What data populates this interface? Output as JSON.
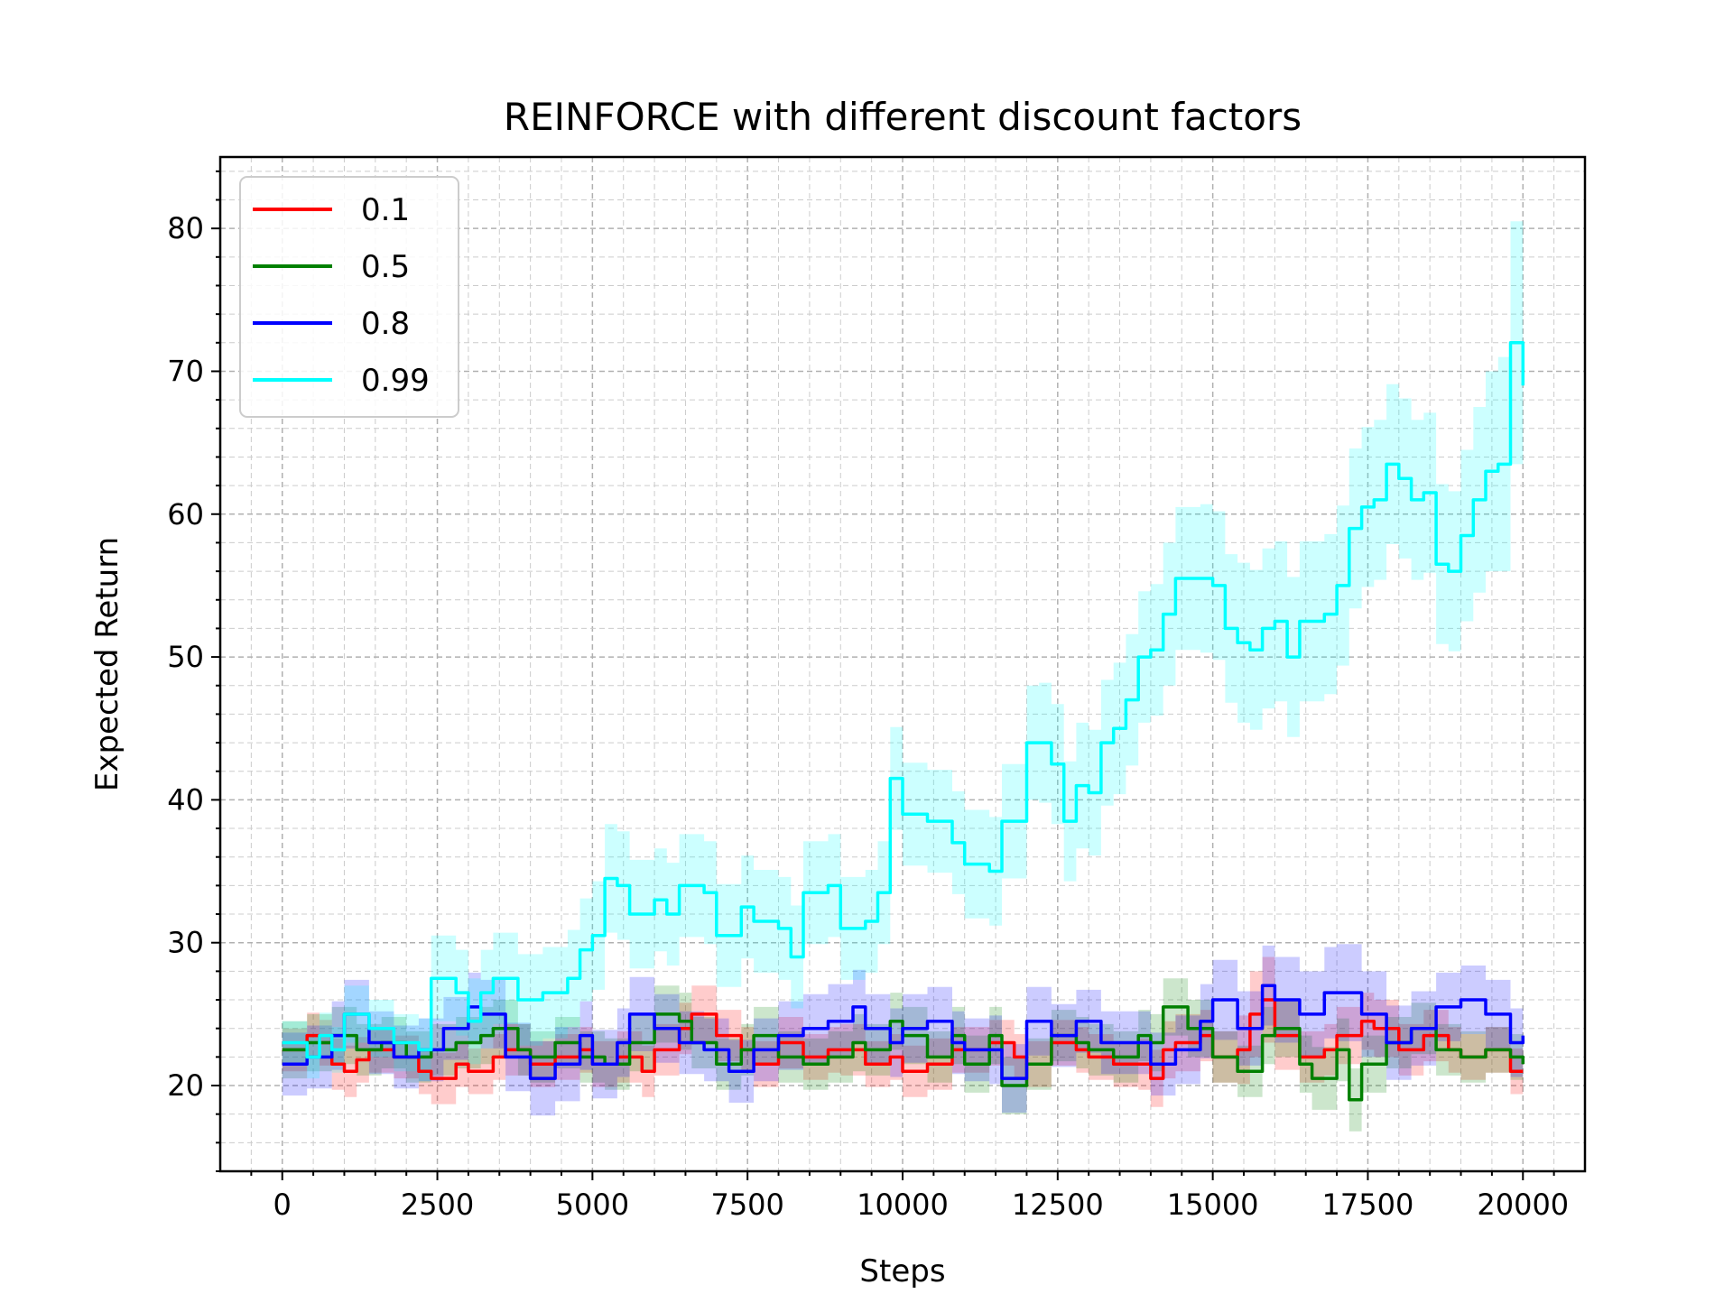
{
  "chart_data": {
    "type": "line",
    "title": "REINFORCE with different discount factors",
    "xlabel": "Steps",
    "ylabel": "Expected Return",
    "xlim": [
      -1000,
      21000
    ],
    "ylim": [
      14,
      85
    ],
    "xticks": [
      0,
      2500,
      5000,
      7500,
      10000,
      12500,
      15000,
      17500,
      20000
    ],
    "xtick_labels": [
      "0",
      "2500",
      "5000",
      "7500",
      "10000",
      "12500",
      "15000",
      "17500",
      "20000"
    ],
    "yticks": [
      20,
      30,
      40,
      50,
      60,
      70,
      80
    ],
    "ytick_labels": [
      "20",
      "30",
      "40",
      "50",
      "60",
      "70",
      "80"
    ],
    "grid": "major and minor, dashed",
    "legend_position": "top-left",
    "bands": "shaded ±std band around each series",
    "series": [
      {
        "name": "0.1",
        "color": "#ff0000",
        "x": [
          0,
          400,
          600,
          800,
          1000,
          1200,
          1400,
          1800,
          2200,
          2400,
          2800,
          3000,
          3400,
          3600,
          4000,
          4400,
          4800,
          5000,
          5400,
          5800,
          6000,
          6400,
          6600,
          7000,
          7400,
          7600,
          8000,
          8400,
          8800,
          9000,
          9400,
          9800,
          10000,
          10400,
          10800,
          11000,
          11400,
          11800,
          12000,
          12400,
          12800,
          13000,
          13400,
          13800,
          14000,
          14200,
          14400,
          14800,
          15000,
          15400,
          15600,
          15800,
          16000,
          16400,
          16800,
          17000,
          17400,
          17600,
          18000,
          18400,
          18800,
          19000,
          19400,
          19800,
          20000
        ],
        "y": [
          22.5,
          23.5,
          23.0,
          21.5,
          21.0,
          21.8,
          22.5,
          22.0,
          21.0,
          20.5,
          21.5,
          21.0,
          22.0,
          22.5,
          21.5,
          22.0,
          22.5,
          21.5,
          22.0,
          21.0,
          22.5,
          24.0,
          25.0,
          23.5,
          22.5,
          21.5,
          23.0,
          22.0,
          22.5,
          22.5,
          21.5,
          22.0,
          21.0,
          21.5,
          22.5,
          22.5,
          23.0,
          22.0,
          21.5,
          23.0,
          22.5,
          22.0,
          21.5,
          21.5,
          20.5,
          22.5,
          23.0,
          23.5,
          22.0,
          22.5,
          25.0,
          26.0,
          23.5,
          22.0,
          22.5,
          23.5,
          24.5,
          24.0,
          22.5,
          23.5,
          22.5,
          22.0,
          22.5,
          21.0,
          21.0
        ],
        "std": [
          1.5,
          1.6,
          1.6,
          1.8,
          1.8,
          1.6,
          1.6,
          1.5,
          1.6,
          1.8,
          1.6,
          1.6,
          1.6,
          1.8,
          1.6,
          1.6,
          1.6,
          1.6,
          1.8,
          1.8,
          1.8,
          1.8,
          2.0,
          1.8,
          1.6,
          1.6,
          1.8,
          1.6,
          1.6,
          1.8,
          1.6,
          1.6,
          1.8,
          1.8,
          1.6,
          1.6,
          1.6,
          1.6,
          1.6,
          1.6,
          1.6,
          1.6,
          1.6,
          1.8,
          2.0,
          2.0,
          2.0,
          1.8,
          1.8,
          2.4,
          3.0,
          3.0,
          2.4,
          1.8,
          1.8,
          2.0,
          2.0,
          2.0,
          1.8,
          1.8,
          1.6,
          1.6,
          1.6,
          1.6,
          1.6
        ]
      },
      {
        "name": "0.5",
        "color": "#008000",
        "x": [
          0,
          400,
          800,
          1200,
          1600,
          2000,
          2400,
          2800,
          3200,
          3400,
          3800,
          4000,
          4400,
          4800,
          5200,
          5600,
          6000,
          6400,
          6600,
          7000,
          7400,
          7600,
          8000,
          8400,
          8800,
          9200,
          9400,
          9800,
          10000,
          10400,
          10800,
          11000,
          11400,
          11600,
          12000,
          12400,
          12800,
          13000,
          13400,
          13800,
          14000,
          14200,
          14600,
          15000,
          15400,
          15800,
          16000,
          16400,
          16600,
          17000,
          17200,
          17400,
          17800,
          18200,
          18600,
          19000,
          19400,
          19800,
          20000
        ],
        "y": [
          22.5,
          23.0,
          23.5,
          22.5,
          23.0,
          22.0,
          22.5,
          23.0,
          23.5,
          24.0,
          22.5,
          22.0,
          23.0,
          22.0,
          21.5,
          23.0,
          25.0,
          24.5,
          23.0,
          21.5,
          22.5,
          23.5,
          22.0,
          21.5,
          22.0,
          23.0,
          22.5,
          24.5,
          23.5,
          22.0,
          23.5,
          21.5,
          23.5,
          20.0,
          21.5,
          23.5,
          23.0,
          22.5,
          22.0,
          23.5,
          23.0,
          25.5,
          24.0,
          22.0,
          21.0,
          23.5,
          24.0,
          21.5,
          20.5,
          22.5,
          19.0,
          21.5,
          23.0,
          24.0,
          22.5,
          22.0,
          22.5,
          22.0,
          21.5
        ],
        "std": [
          2.0,
          2.0,
          2.0,
          1.8,
          1.8,
          1.8,
          1.8,
          1.8,
          2.0,
          2.0,
          1.8,
          1.8,
          1.8,
          1.8,
          1.8,
          2.0,
          2.0,
          2.0,
          1.8,
          1.8,
          1.8,
          2.0,
          1.8,
          1.8,
          1.8,
          2.0,
          1.8,
          2.0,
          2.0,
          1.8,
          2.0,
          2.0,
          2.0,
          2.0,
          1.8,
          1.8,
          1.8,
          1.8,
          1.8,
          1.8,
          2.0,
          2.0,
          2.0,
          1.8,
          1.8,
          2.0,
          2.0,
          2.0,
          2.2,
          2.2,
          2.2,
          2.0,
          1.8,
          1.8,
          1.8,
          1.8,
          1.6,
          1.6,
          1.6
        ]
      },
      {
        "name": "0.8",
        "color": "#0000ff",
        "x": [
          0,
          400,
          800,
          1000,
          1400,
          1800,
          2200,
          2600,
          3000,
          3200,
          3600,
          4000,
          4400,
          4800,
          5000,
          5400,
          5600,
          6000,
          6400,
          6800,
          7200,
          7600,
          8000,
          8400,
          8800,
          9200,
          9400,
          9800,
          10000,
          10400,
          10800,
          11000,
          11400,
          11600,
          12000,
          12400,
          12800,
          13200,
          13600,
          14000,
          14400,
          14800,
          15000,
          15400,
          15800,
          16000,
          16400,
          16800,
          17000,
          17400,
          17800,
          18200,
          18600,
          19000,
          19400,
          19800,
          20000
        ],
        "y": [
          21.5,
          22.0,
          23.5,
          25.0,
          23.0,
          22.0,
          22.5,
          24.0,
          25.5,
          25.0,
          22.0,
          20.5,
          21.5,
          23.5,
          21.5,
          23.0,
          25.0,
          24.0,
          23.0,
          22.5,
          21.0,
          22.5,
          23.5,
          24.0,
          24.5,
          25.5,
          24.0,
          23.0,
          24.0,
          24.5,
          23.0,
          22.5,
          22.5,
          20.5,
          24.5,
          23.5,
          24.5,
          23.0,
          23.0,
          21.5,
          22.5,
          24.5,
          26.0,
          24.0,
          27.0,
          26.0,
          25.0,
          26.5,
          26.5,
          25.0,
          23.0,
          24.0,
          25.5,
          26.0,
          25.0,
          23.0,
          23.5
        ],
        "std": [
          2.2,
          2.2,
          2.4,
          2.4,
          2.2,
          2.2,
          2.2,
          2.2,
          2.4,
          2.4,
          2.4,
          2.6,
          2.6,
          2.4,
          2.4,
          2.4,
          2.6,
          2.4,
          2.2,
          2.2,
          2.2,
          2.2,
          2.4,
          2.4,
          2.6,
          2.6,
          2.4,
          2.4,
          2.4,
          2.4,
          2.2,
          2.2,
          2.4,
          2.4,
          2.4,
          2.2,
          2.2,
          2.2,
          2.2,
          2.2,
          2.4,
          2.6,
          2.8,
          2.6,
          2.8,
          3.0,
          3.0,
          3.2,
          3.4,
          3.0,
          2.6,
          2.6,
          2.4,
          2.4,
          2.4,
          2.4,
          2.4
        ]
      },
      {
        "name": "0.99",
        "color": "#00ffff",
        "x": [
          0,
          400,
          600,
          800,
          1000,
          1400,
          1800,
          2200,
          2400,
          2800,
          3000,
          3200,
          3400,
          3800,
          4200,
          4600,
          4800,
          5000,
          5200,
          5400,
          5600,
          6000,
          6200,
          6400,
          6800,
          7000,
          7400,
          7600,
          8000,
          8200,
          8400,
          8800,
          9000,
          9400,
          9600,
          9800,
          10000,
          10400,
          10800,
          11000,
          11400,
          11600,
          12000,
          12200,
          12400,
          12600,
          12800,
          13000,
          13200,
          13400,
          13600,
          13800,
          14000,
          14200,
          14400,
          14800,
          15000,
          15200,
          15400,
          15600,
          15800,
          16000,
          16200,
          16400,
          16800,
          17000,
          17200,
          17400,
          17600,
          17800,
          18000,
          18200,
          18400,
          18600,
          18800,
          19000,
          19200,
          19400,
          19600,
          19800,
          20000
        ],
        "y": [
          23.0,
          22.0,
          23.5,
          22.5,
          25.0,
          24.0,
          23.0,
          22.5,
          27.5,
          26.5,
          24.5,
          26.5,
          27.5,
          26.0,
          26.5,
          27.5,
          29.5,
          30.5,
          34.5,
          34.0,
          32.0,
          33.0,
          32.0,
          34.0,
          33.5,
          30.5,
          32.5,
          31.5,
          31.0,
          29.0,
          33.5,
          34.0,
          31.0,
          31.5,
          33.5,
          41.5,
          39.0,
          38.5,
          37.0,
          35.5,
          35.0,
          38.5,
          44.0,
          44.0,
          42.5,
          38.5,
          41.0,
          40.5,
          44.0,
          45.0,
          47.0,
          50.0,
          50.5,
          53.0,
          55.5,
          55.5,
          55.0,
          52.0,
          51.0,
          50.5,
          52.0,
          52.5,
          50.0,
          52.5,
          53.0,
          55.0,
          59.0,
          60.5,
          61.0,
          63.5,
          62.5,
          61.0,
          61.5,
          56.5,
          56.0,
          58.5,
          61.0,
          63.0,
          63.5,
          72.0,
          69.0
        ],
        "std": [
          1.5,
          1.5,
          1.6,
          1.6,
          2.0,
          2.0,
          2.0,
          2.2,
          3.0,
          3.0,
          3.0,
          3.0,
          3.2,
          3.2,
          3.2,
          3.4,
          3.6,
          3.8,
          3.8,
          3.8,
          3.8,
          3.6,
          3.6,
          3.6,
          3.6,
          3.6,
          3.6,
          3.6,
          3.6,
          3.6,
          3.6,
          3.6,
          3.6,
          3.6,
          3.6,
          3.6,
          3.6,
          3.6,
          3.6,
          3.8,
          3.8,
          4.0,
          4.0,
          4.2,
          4.2,
          4.2,
          4.4,
          4.4,
          4.4,
          4.6,
          4.6,
          4.6,
          4.6,
          5.0,
          5.0,
          5.2,
          5.2,
          5.2,
          5.6,
          5.6,
          5.6,
          5.6,
          5.6,
          5.6,
          5.6,
          5.6,
          5.6,
          5.6,
          5.6,
          5.6,
          5.6,
          5.6,
          5.6,
          5.6,
          5.6,
          6.0,
          6.5,
          7.0,
          7.5,
          8.5,
          9.0
        ]
      }
    ]
  }
}
